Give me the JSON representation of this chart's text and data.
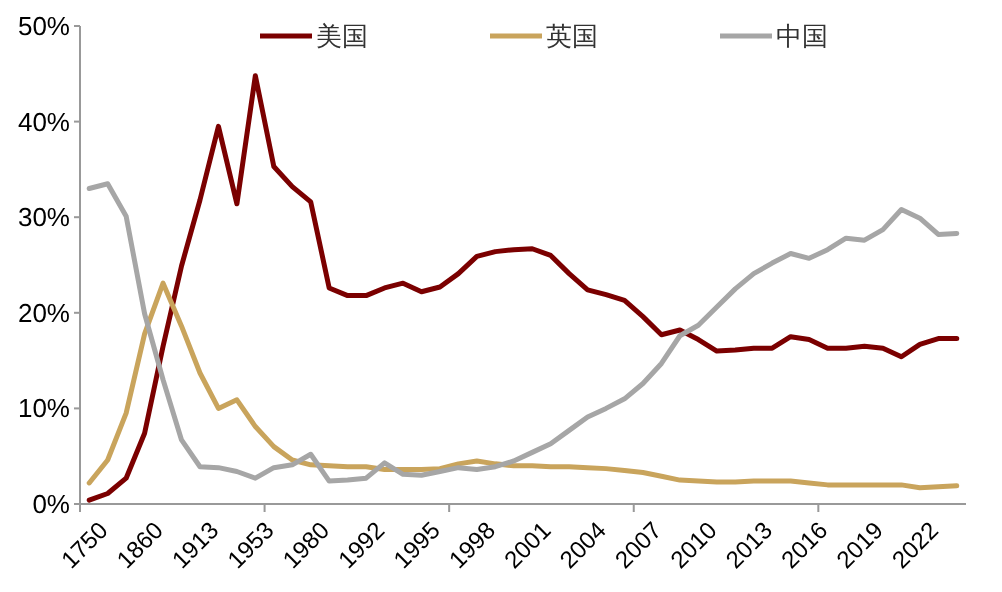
{
  "chart_data": {
    "type": "line",
    "categories": [
      "1750",
      null,
      null,
      "1860",
      null,
      null,
      "1913",
      null,
      null,
      "1953",
      null,
      null,
      "1980",
      null,
      null,
      "1992",
      null,
      null,
      "1995",
      null,
      null,
      "1998",
      null,
      null,
      "2001",
      null,
      null,
      "2004",
      null,
      null,
      "2007",
      null,
      null,
      "2010",
      null,
      null,
      "2013",
      null,
      null,
      "2016",
      null,
      null,
      "2019",
      null,
      null,
      "2022",
      null,
      null
    ],
    "ylim": [
      0,
      50
    ],
    "yticks": [
      {
        "value": 0,
        "label": "0%"
      },
      {
        "value": 10,
        "label": "10%"
      },
      {
        "value": 20,
        "label": "20%"
      },
      {
        "value": 30,
        "label": "30%"
      },
      {
        "value": 40,
        "label": "40%"
      },
      {
        "value": 50,
        "label": "50%"
      }
    ],
    "grid": false,
    "legend": "top",
    "marker": "none",
    "line_style": "solid",
    "series": [
      {
        "name": "美国",
        "color": "#7b0000",
        "values": [
          0.4,
          1.1,
          2.7,
          7.4,
          16.5,
          24.9,
          31.8,
          39.5,
          31.4,
          44.8,
          35.3,
          33.2,
          31.6,
          22.6,
          21.8,
          21.8,
          22.6,
          23.1,
          22.2,
          22.7,
          24.1,
          25.9,
          26.4,
          26.6,
          26.7,
          26.0,
          24.1,
          22.4,
          21.9,
          21.3,
          19.6,
          17.7,
          18.2,
          17.2,
          16.0,
          16.1,
          16.3,
          16.3,
          17.5,
          17.2,
          16.3,
          16.3,
          16.5,
          16.3,
          15.4,
          16.7,
          17.3,
          17.3
        ]
      },
      {
        "name": "英国",
        "color": "#c9a45c",
        "values": [
          2.2,
          4.6,
          9.5,
          17.8,
          23.1,
          18.6,
          13.7,
          10.0,
          10.9,
          8.1,
          6.0,
          4.6,
          4.1,
          4.0,
          3.9,
          3.9,
          3.6,
          3.6,
          3.6,
          3.7,
          4.2,
          4.5,
          4.2,
          4.0,
          4.0,
          3.9,
          3.9,
          3.8,
          3.7,
          3.5,
          3.3,
          2.9,
          2.5,
          2.4,
          2.3,
          2.3,
          2.4,
          2.4,
          2.4,
          2.2,
          2.0,
          2.0,
          2.0,
          2.0,
          2.0,
          1.7,
          1.8,
          1.9
        ]
      },
      {
        "name": "中国",
        "color": "#a6a6a6",
        "values": [
          33.0,
          33.5,
          30.1,
          19.9,
          13.0,
          6.7,
          3.9,
          3.8,
          3.4,
          2.7,
          3.8,
          4.1,
          5.2,
          2.4,
          2.5,
          2.7,
          4.3,
          3.1,
          3.0,
          3.4,
          3.8,
          3.6,
          3.9,
          4.5,
          5.4,
          6.3,
          7.7,
          9.1,
          10.0,
          11.0,
          12.6,
          14.7,
          17.6,
          18.7,
          20.6,
          22.5,
          24.1,
          25.2,
          26.2,
          25.7,
          26.6,
          27.8,
          27.6,
          28.7,
          30.8,
          29.9,
          28.2,
          28.3
        ]
      }
    ]
  }
}
